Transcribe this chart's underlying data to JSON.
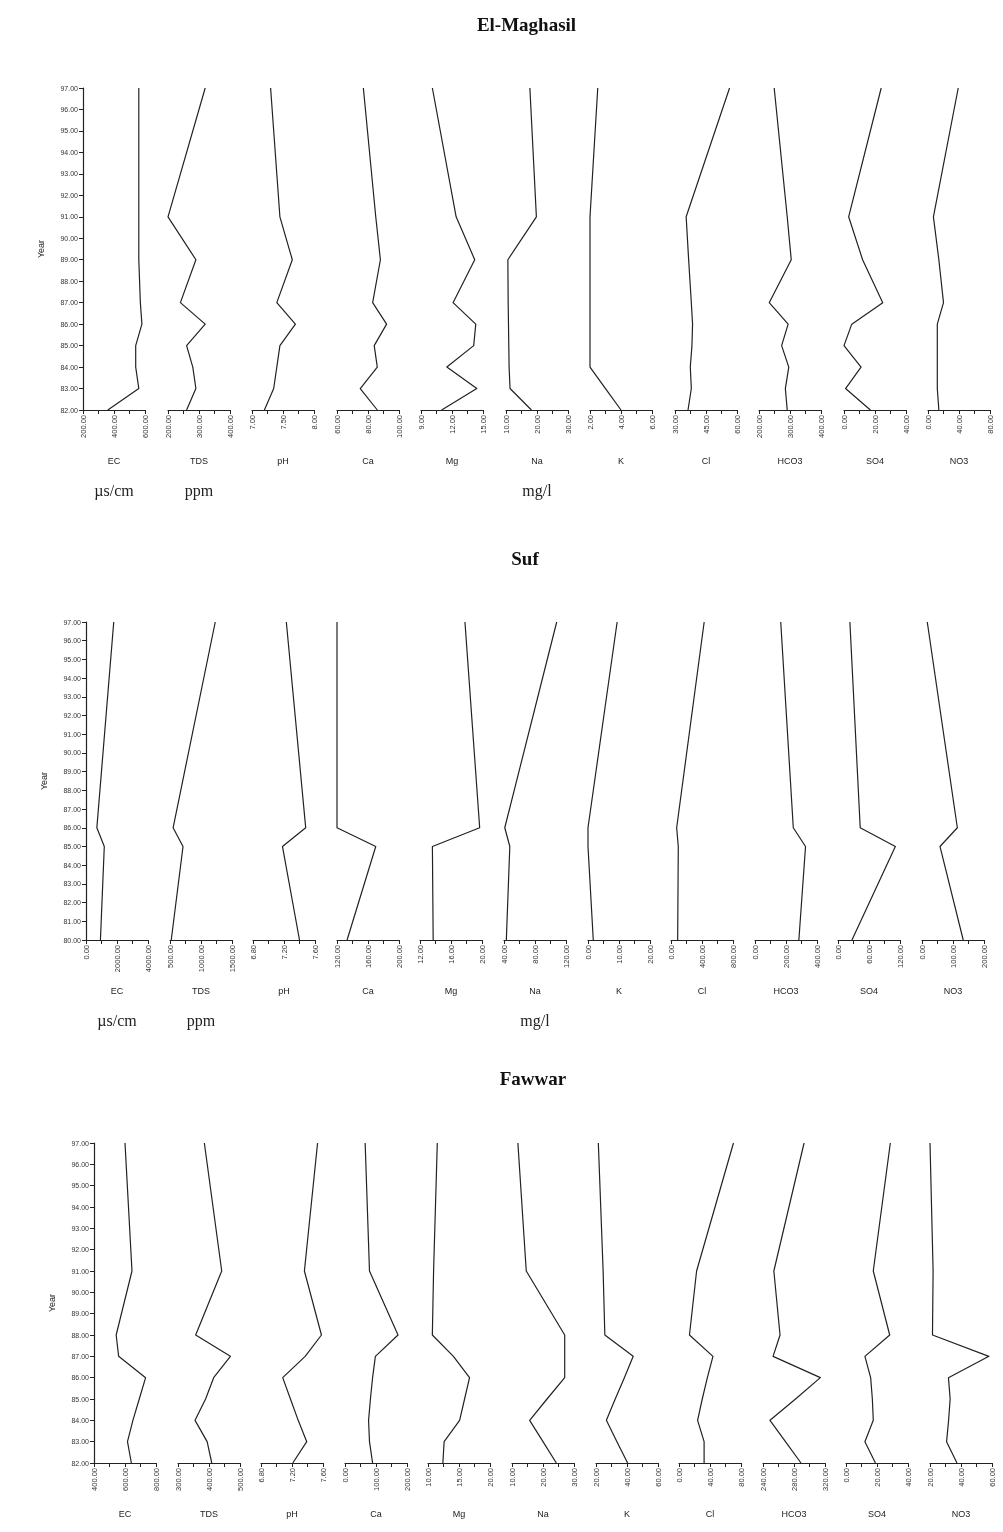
{
  "chart_data": [
    {
      "type": "line",
      "xlabel": "EC",
      "ylabel": "Year",
      "annotations": [
        "µs/cm"
      ],
      "color": "#222222",
      "x": [
        360,
        560,
        540,
        540,
        580,
        570,
        560,
        560,
        560
      ],
      "values": [
        82,
        83,
        84,
        85,
        86,
        87,
        89,
        91,
        97
      ],
      "xlim": [
        200,
        600
      ],
      "xticks": [
        {
          "value": 200,
          "label": "200.00"
        },
        {
          "value": 300,
          "label": null
        },
        {
          "value": 400,
          "label": "400.00"
        },
        {
          "value": 500,
          "label": null
        },
        {
          "value": 600,
          "label": "600.00"
        }
      ],
      "ylim": [
        82,
        97
      ],
      "yticks": [
        {
          "value": 82,
          "label": "82.00"
        },
        {
          "value": 83,
          "label": "83.00"
        },
        {
          "value": 84,
          "label": "84.00"
        },
        {
          "value": 85,
          "label": "85.00"
        },
        {
          "value": 86,
          "label": "86.00"
        },
        {
          "value": 87,
          "label": "87.00"
        },
        {
          "value": 88,
          "label": "88.00"
        },
        {
          "value": 89,
          "label": "89.00"
        },
        {
          "value": 90,
          "label": "90.00"
        },
        {
          "value": 91,
          "label": "91.00"
        },
        {
          "value": 92,
          "label": "92.00"
        },
        {
          "value": 93,
          "label": "93.00"
        },
        {
          "value": 94,
          "label": "94.00"
        },
        {
          "value": 95,
          "label": "95.00"
        },
        {
          "value": 96,
          "label": "96.00"
        },
        {
          "value": 97,
          "label": "97.00"
        }
      ]
    },
    {
      "type": "line",
      "xlabel": "TDS",
      "annotations": [
        "ppm"
      ],
      "color": "#222222",
      "x": [
        260,
        290,
        280,
        260,
        320,
        240,
        290,
        200,
        320
      ],
      "values": [
        82,
        83,
        84,
        85,
        86,
        87,
        89,
        91,
        97
      ],
      "xlim": [
        200,
        400
      ],
      "xticks": [
        {
          "value": 200,
          "label": "200.00"
        },
        {
          "value": 250,
          "label": null
        },
        {
          "value": 300,
          "label": "300.00"
        },
        {
          "value": 350,
          "label": null
        },
        {
          "value": 400,
          "label": "400.00"
        }
      ],
      "ylim": [
        82,
        97
      ],
      "tick_labels": "x"
    },
    {
      "type": "line",
      "xlabel": "pH",
      "color": "#222222",
      "x": [
        7.2,
        7.35,
        7.4,
        7.45,
        7.7,
        7.4,
        7.65,
        7.45,
        7.3
      ],
      "values": [
        82,
        83,
        84,
        85,
        86,
        87,
        89,
        91,
        97
      ],
      "xlim": [
        7,
        8
      ],
      "xticks": [
        {
          "value": 7,
          "label": "7.00"
        },
        {
          "value": 7.25,
          "label": null
        },
        {
          "value": 7.5,
          "label": "7.50"
        },
        {
          "value": 7.75,
          "label": null
        },
        {
          "value": 8,
          "label": "8.00"
        }
      ],
      "ylim": [
        82,
        97
      ],
      "tick_labels": "x"
    },
    {
      "type": "line",
      "xlabel": "Ca",
      "color": "#222222",
      "x": [
        86,
        75,
        86,
        84,
        92,
        83,
        88,
        85,
        77
      ],
      "values": [
        82,
        83,
        84,
        85,
        86,
        87,
        89,
        91,
        97
      ],
      "xlim": [
        60,
        100
      ],
      "xticks": [
        {
          "value": 60,
          "label": "60.00"
        },
        {
          "value": 70,
          "label": null
        },
        {
          "value": 80,
          "label": "80.00"
        },
        {
          "value": 90,
          "label": null
        },
        {
          "value": 100,
          "label": "100.00"
        }
      ],
      "ylim": [
        82,
        97
      ],
      "tick_labels": "x"
    },
    {
      "type": "line",
      "xlabel": "Mg",
      "color": "#222222",
      "x": [
        11,
        14.4,
        11.5,
        14.1,
        14.3,
        12.1,
        14.2,
        12.4,
        10.1
      ],
      "values": [
        82,
        83,
        84,
        85,
        86,
        87,
        89,
        91,
        97
      ],
      "xlim": [
        9,
        15
      ],
      "xticks": [
        {
          "value": 9,
          "label": "9.00"
        },
        {
          "value": 10.5,
          "label": null
        },
        {
          "value": 12,
          "label": "12.00"
        },
        {
          "value": 13.5,
          "label": null
        },
        {
          "value": 15,
          "label": "15.00"
        }
      ],
      "ylim": [
        82,
        97
      ],
      "tick_labels": "x"
    },
    {
      "type": "line",
      "title": "El-Maghasil",
      "xlabel": "Na",
      "annotations": [
        "mg/l"
      ],
      "color": "#222222",
      "x": [
        18.2,
        11.3,
        11,
        10.9,
        10.8,
        10.7,
        10.6,
        19.8,
        17.7
      ],
      "values": [
        82,
        83,
        84,
        85,
        86,
        87,
        89,
        91,
        97
      ],
      "xlim": [
        10,
        30
      ],
      "xticks": [
        {
          "value": 10,
          "label": "10.00"
        },
        {
          "value": 15,
          "label": null
        },
        {
          "value": 20,
          "label": "20.00"
        },
        {
          "value": 25,
          "label": null
        },
        {
          "value": 30,
          "label": "30.00"
        }
      ],
      "ylim": [
        82,
        97
      ],
      "tick_labels": "x"
    },
    {
      "type": "line",
      "xlabel": "K",
      "color": "#222222",
      "x": [
        4,
        3,
        2,
        2,
        2,
        2,
        2,
        2,
        2.5
      ],
      "values": [
        82,
        83,
        84,
        85,
        86,
        87,
        89,
        91,
        97
      ],
      "xlim": [
        2,
        6
      ],
      "xticks": [
        {
          "value": 2,
          "label": "2.00"
        },
        {
          "value": 3,
          "label": null
        },
        {
          "value": 4,
          "label": "4.00"
        },
        {
          "value": 5,
          "label": null
        },
        {
          "value": 6,
          "label": "6.00"
        }
      ],
      "ylim": [
        82,
        97
      ],
      "tick_labels": "x"
    },
    {
      "type": "line",
      "xlabel": "Cl",
      "color": "#222222",
      "x": [
        36.3,
        37.9,
        37.4,
        38.2,
        38.5,
        37.9,
        36.6,
        35.4,
        56.4
      ],
      "values": [
        82,
        83,
        84,
        85,
        86,
        87,
        89,
        91,
        97
      ],
      "xlim": [
        30,
        60
      ],
      "xticks": [
        {
          "value": 30,
          "label": "30.00"
        },
        {
          "value": 37.5,
          "label": null
        },
        {
          "value": 45,
          "label": "45.00"
        },
        {
          "value": 52.5,
          "label": null
        },
        {
          "value": 60,
          "label": "60.00"
        }
      ],
      "ylim": [
        82,
        97
      ],
      "tick_labels": "x"
    },
    {
      "type": "line",
      "xlabel": "HCO3",
      "color": "#222222",
      "x": [
        291,
        285,
        296,
        273,
        294,
        233,
        304,
        291,
        249
      ],
      "values": [
        82,
        83,
        84,
        85,
        86,
        87,
        89,
        91,
        97
      ],
      "xlim": [
        200,
        400
      ],
      "xticks": [
        {
          "value": 200,
          "label": "200.00"
        },
        {
          "value": 250,
          "label": null
        },
        {
          "value": 300,
          "label": "300.00"
        },
        {
          "value": 350,
          "label": null
        },
        {
          "value": 400,
          "label": "400.00"
        }
      ],
      "ylim": [
        82,
        97
      ],
      "tick_labels": "x"
    },
    {
      "type": "line",
      "xlabel": "SO4",
      "color": "#222222",
      "x": [
        17,
        1,
        11,
        0,
        5,
        25,
        12,
        3,
        24
      ],
      "values": [
        82,
        83,
        84,
        85,
        86,
        87,
        89,
        91,
        97
      ],
      "xlim": [
        0,
        40
      ],
      "xticks": [
        {
          "value": 0,
          "label": "0.00"
        },
        {
          "value": 10,
          "label": null
        },
        {
          "value": 20,
          "label": "20.00"
        },
        {
          "value": 30,
          "label": null
        },
        {
          "value": 40,
          "label": "40.00"
        }
      ],
      "ylim": [
        82,
        97
      ],
      "tick_labels": "x"
    },
    {
      "type": "line",
      "xlabel": "NO3",
      "color": "#222222",
      "x": [
        14,
        12,
        12,
        12,
        12,
        20,
        14,
        7,
        39
      ],
      "values": [
        82,
        83,
        84,
        85,
        86,
        87,
        89,
        91,
        97
      ],
      "xlim": [
        0,
        80
      ],
      "xticks": [
        {
          "value": 0,
          "label": "0.00"
        },
        {
          "value": 20,
          "label": null
        },
        {
          "value": 40,
          "label": "40.00"
        },
        {
          "value": 60,
          "label": null
        },
        {
          "value": 80,
          "label": "80.00"
        }
      ],
      "ylim": [
        82,
        97
      ],
      "tick_labels": "x"
    },
    {
      "type": "line",
      "xlabel": "EC",
      "ylabel": "Year",
      "annotations": [
        "µs/cm"
      ],
      "color": "#222222",
      "x": [
        930,
        1180,
        700,
        1790
      ],
      "values": [
        80,
        85,
        86,
        97
      ],
      "xlim": [
        0,
        4000
      ],
      "xticks": [
        {
          "value": 0,
          "label": "0.00"
        },
        {
          "value": 1000,
          "label": null
        },
        {
          "value": 2000,
          "label": "2000.00"
        },
        {
          "value": 3000,
          "label": null
        },
        {
          "value": 4000,
          "label": "4000.00"
        }
      ],
      "ylim": [
        80,
        97
      ],
      "yticks": [
        {
          "value": 80,
          "label": "80.00"
        },
        {
          "value": 81,
          "label": "81.00"
        },
        {
          "value": 82,
          "label": "82.00"
        },
        {
          "value": 83,
          "label": "83.00"
        },
        {
          "value": 84,
          "label": "84.00"
        },
        {
          "value": 85,
          "label": "85.00"
        },
        {
          "value": 86,
          "label": "86.00"
        },
        {
          "value": 87,
          "label": "87.00"
        },
        {
          "value": 88,
          "label": "88.00"
        },
        {
          "value": 89,
          "label": "89.00"
        },
        {
          "value": 90,
          "label": "90.00"
        },
        {
          "value": 91,
          "label": "91.00"
        },
        {
          "value": 92,
          "label": "92.00"
        },
        {
          "value": 93,
          "label": "93.00"
        },
        {
          "value": 94,
          "label": "94.00"
        },
        {
          "value": 95,
          "label": "95.00"
        },
        {
          "value": 96,
          "label": "96.00"
        },
        {
          "value": 97,
          "label": "97.00"
        }
      ]
    },
    {
      "type": "line",
      "xlabel": "TDS",
      "annotations": [
        "ppm"
      ],
      "color": "#222222",
      "x": [
        520,
        710,
        550,
        1230
      ],
      "values": [
        80,
        85,
        86,
        97
      ],
      "xlim": [
        500,
        1500
      ],
      "xticks": [
        {
          "value": 500,
          "label": "500.00"
        },
        {
          "value": 750,
          "label": null
        },
        {
          "value": 1000,
          "label": "1000.00"
        },
        {
          "value": 1250,
          "label": null
        },
        {
          "value": 1500,
          "label": "1500.00"
        }
      ],
      "ylim": [
        80,
        97
      ],
      "tick_labels": "x"
    },
    {
      "type": "line",
      "xlabel": "pH",
      "color": "#222222",
      "x": [
        7.4,
        7.18,
        7.48,
        7.23
      ],
      "values": [
        80,
        85,
        86,
        97
      ],
      "xlim": [
        6.8,
        7.6
      ],
      "xticks": [
        {
          "value": 6.8,
          "label": "6.80"
        },
        {
          "value": 7,
          "label": null
        },
        {
          "value": 7.2,
          "label": "7.20"
        },
        {
          "value": 7.4,
          "label": null
        },
        {
          "value": 7.6,
          "label": "7.60"
        }
      ],
      "ylim": [
        80,
        97
      ],
      "tick_labels": "x"
    },
    {
      "type": "line",
      "xlabel": "Ca",
      "color": "#222222",
      "x": [
        133,
        170,
        120,
        120
      ],
      "values": [
        80,
        85,
        86,
        97
      ],
      "xlim": [
        120,
        200
      ],
      "xticks": [
        {
          "value": 120,
          "label": "120.00"
        },
        {
          "value": 140,
          "label": null
        },
        {
          "value": 160,
          "label": "160.00"
        },
        {
          "value": 180,
          "label": null
        },
        {
          "value": 200,
          "label": "200.00"
        }
      ],
      "ylim": [
        80,
        97
      ],
      "tick_labels": "x"
    },
    {
      "type": "line",
      "xlabel": "Mg",
      "color": "#222222",
      "x": [
        13.7,
        13.6,
        19.7,
        17.8
      ],
      "values": [
        80,
        85,
        86,
        97
      ],
      "xlim": [
        12,
        20
      ],
      "xticks": [
        {
          "value": 12,
          "label": "12.00"
        },
        {
          "value": 14,
          "label": null
        },
        {
          "value": 16,
          "label": "16.00"
        },
        {
          "value": 18,
          "label": null
        },
        {
          "value": 20,
          "label": "20.00"
        }
      ],
      "ylim": [
        80,
        97
      ],
      "tick_labels": "x"
    },
    {
      "type": "line",
      "title": "Suf",
      "xlabel": "Na",
      "annotations": [
        "mg/l"
      ],
      "color": "#222222",
      "x": [
        43,
        47.5,
        41,
        108
      ],
      "values": [
        80,
        85,
        86,
        97
      ],
      "xlim": [
        40,
        120
      ],
      "xticks": [
        {
          "value": 40,
          "label": "40.00"
        },
        {
          "value": 60,
          "label": null
        },
        {
          "value": 80,
          "label": "80.00"
        },
        {
          "value": 100,
          "label": null
        },
        {
          "value": 120,
          "label": "120.00"
        }
      ],
      "ylim": [
        80,
        97
      ],
      "tick_labels": "x"
    },
    {
      "type": "line",
      "xlabel": "K",
      "color": "#222222",
      "x": [
        1.7,
        0,
        0,
        9.4
      ],
      "values": [
        80,
        85,
        86,
        97
      ],
      "xlim": [
        0,
        20
      ],
      "xticks": [
        {
          "value": 0,
          "label": "0.00"
        },
        {
          "value": 5,
          "label": null
        },
        {
          "value": 10,
          "label": "10.00"
        },
        {
          "value": 15,
          "label": null
        },
        {
          "value": 20,
          "label": "20.00"
        }
      ],
      "ylim": [
        80,
        97
      ],
      "tick_labels": "x"
    },
    {
      "type": "line",
      "xlabel": "Cl",
      "color": "#222222",
      "x": [
        86,
        94,
        73,
        428
      ],
      "values": [
        80,
        85,
        86,
        97
      ],
      "xlim": [
        0,
        800
      ],
      "xticks": [
        {
          "value": 0,
          "label": "0.00"
        },
        {
          "value": 200,
          "label": null
        },
        {
          "value": 400,
          "label": "400.00"
        },
        {
          "value": 600,
          "label": null
        },
        {
          "value": 800,
          "label": "800.00"
        }
      ],
      "ylim": [
        80,
        97
      ],
      "tick_labels": "x"
    },
    {
      "type": "line",
      "xlabel": "HCO3",
      "color": "#222222",
      "x": [
        283,
        326,
        247,
        166
      ],
      "values": [
        80,
        85,
        86,
        97
      ],
      "xlim": [
        0,
        400
      ],
      "xticks": [
        {
          "value": 0,
          "label": "0.00"
        },
        {
          "value": 100,
          "label": null
        },
        {
          "value": 200,
          "label": "200.00"
        },
        {
          "value": 300,
          "label": null
        },
        {
          "value": 400,
          "label": "400.00"
        }
      ],
      "ylim": [
        80,
        97
      ],
      "tick_labels": "x"
    },
    {
      "type": "line",
      "xlabel": "SO4",
      "color": "#222222",
      "x": [
        27,
        111,
        43,
        23
      ],
      "values": [
        80,
        85,
        86,
        97
      ],
      "xlim": [
        0,
        120
      ],
      "xticks": [
        {
          "value": 0,
          "label": "0.00"
        },
        {
          "value": 30,
          "label": null
        },
        {
          "value": 60,
          "label": "60.00"
        },
        {
          "value": 90,
          "label": null
        },
        {
          "value": 120,
          "label": "120.00"
        }
      ],
      "ylim": [
        80,
        97
      ],
      "tick_labels": "x"
    },
    {
      "type": "line",
      "xlabel": "NO3",
      "color": "#222222",
      "x": [
        133,
        58,
        114,
        17
      ],
      "values": [
        80,
        85,
        86,
        97
      ],
      "xlim": [
        0,
        200
      ],
      "xticks": [
        {
          "value": 0,
          "label": "0.00"
        },
        {
          "value": 50,
          "label": null
        },
        {
          "value": 100,
          "label": "100.00"
        },
        {
          "value": 150,
          "label": null
        },
        {
          "value": 200,
          "label": "200.00"
        }
      ],
      "ylim": [
        80,
        97
      ],
      "tick_labels": "x"
    },
    {
      "type": "line",
      "xlabel": "EC",
      "ylabel": "Year",
      "color": "#222222",
      "x": [
        641,
        616,
        651,
        692,
        733,
        559,
        543,
        645,
        600
      ],
      "values": [
        82,
        83,
        84,
        85,
        86,
        87,
        88,
        91,
        97
      ],
      "xlim": [
        400,
        800
      ],
      "xticks": [
        {
          "value": 400,
          "label": "400.00"
        },
        {
          "value": 500,
          "label": null
        },
        {
          "value": 600,
          "label": "600.00"
        },
        {
          "value": 700,
          "label": null
        },
        {
          "value": 800,
          "label": "800.00"
        }
      ],
      "ylim": [
        82,
        97
      ],
      "yticks": [
        {
          "value": 82,
          "label": "82.00"
        },
        {
          "value": 83,
          "label": "83.00"
        },
        {
          "value": 84,
          "label": "84.00"
        },
        {
          "value": 85,
          "label": "85.00"
        },
        {
          "value": 86,
          "label": "86.00"
        },
        {
          "value": 87,
          "label": "87.00"
        },
        {
          "value": 88,
          "label": "88.00"
        },
        {
          "value": 89,
          "label": "89.00"
        },
        {
          "value": 90,
          "label": "90.00"
        },
        {
          "value": 91,
          "label": "91.00"
        },
        {
          "value": 92,
          "label": "92.00"
        },
        {
          "value": 93,
          "label": "93.00"
        },
        {
          "value": 94,
          "label": "94.00"
        },
        {
          "value": 95,
          "label": "95.00"
        },
        {
          "value": 96,
          "label": "96.00"
        },
        {
          "value": 97,
          "label": "97.00"
        }
      ]
    },
    {
      "type": "line",
      "xlabel": "TDS",
      "color": "#222222",
      "x": [
        409,
        394,
        355,
        389,
        415,
        469,
        357,
        441,
        385
      ],
      "values": [
        82,
        83,
        84,
        85,
        86,
        87,
        88,
        91,
        97
      ],
      "xlim": [
        300,
        500
      ],
      "xticks": [
        {
          "value": 300,
          "label": "300.00"
        },
        {
          "value": 350,
          "label": null
        },
        {
          "value": 400,
          "label": "400.00"
        },
        {
          "value": 450,
          "label": null
        },
        {
          "value": 500,
          "label": "500.00"
        }
      ],
      "ylim": [
        82,
        97
      ],
      "tick_labels": "x"
    },
    {
      "type": "line",
      "xlabel": "pH",
      "color": "#222222",
      "x": [
        7.21,
        7.39,
        7.28,
        7.18,
        7.08,
        7.37,
        7.58,
        7.36,
        7.53
      ],
      "values": [
        82,
        83,
        84,
        85,
        86,
        87,
        88,
        91,
        97
      ],
      "xlim": [
        6.8,
        7.6
      ],
      "xticks": [
        {
          "value": 6.8,
          "label": "6.80"
        },
        {
          "value": 7,
          "label": null
        },
        {
          "value": 7.2,
          "label": "7.20"
        },
        {
          "value": 7.4,
          "label": null
        },
        {
          "value": 7.6,
          "label": "7.60"
        }
      ],
      "ylim": [
        82,
        97
      ],
      "tick_labels": "x"
    },
    {
      "type": "line",
      "xlabel": "Ca",
      "color": "#222222",
      "x": [
        89,
        79,
        76,
        82,
        89,
        98,
        171,
        79,
        65
      ],
      "values": [
        82,
        83,
        84,
        85,
        86,
        87,
        88,
        91,
        97
      ],
      "xlim": [
        0,
        200
      ],
      "xticks": [
        {
          "value": 0,
          "label": "0.00"
        },
        {
          "value": 50,
          "label": null
        },
        {
          "value": 100,
          "label": "100.00"
        },
        {
          "value": 150,
          "label": null
        },
        {
          "value": 200,
          "label": "200.00"
        }
      ],
      "ylim": [
        82,
        97
      ],
      "tick_labels": "x"
    },
    {
      "type": "line",
      "xlabel": "Mg",
      "color": "#222222",
      "x": [
        12.4,
        12.6,
        15.1,
        15.9,
        16.7,
        14.1,
        10.7,
        10.9,
        11.5
      ],
      "values": [
        82,
        83,
        84,
        85,
        86,
        87,
        88,
        91,
        97
      ],
      "xlim": [
        10,
        20
      ],
      "xticks": [
        {
          "value": 10,
          "label": "10.00"
        },
        {
          "value": 12.5,
          "label": null
        },
        {
          "value": 15,
          "label": "15.00"
        },
        {
          "value": 17.5,
          "label": null
        },
        {
          "value": 20,
          "label": "20.00"
        }
      ],
      "ylim": [
        82,
        97
      ],
      "tick_labels": "x"
    },
    {
      "type": "line",
      "title": "Fawwar",
      "xlabel": "Na",
      "color": "#222222",
      "x": [
        24.3,
        20,
        15.7,
        21.3,
        27,
        27,
        27,
        14.6,
        11.9
      ],
      "values": [
        82,
        83,
        84,
        85,
        86,
        87,
        88,
        91,
        97
      ],
      "xlim": [
        10,
        30
      ],
      "xticks": [
        {
          "value": 10,
          "label": "10.00"
        },
        {
          "value": 15,
          "label": null
        },
        {
          "value": 20,
          "label": "20.00"
        },
        {
          "value": 25,
          "label": null
        },
        {
          "value": 30,
          "label": "30.00"
        }
      ],
      "ylim": [
        82,
        97
      ],
      "tick_labels": "x"
    },
    {
      "type": "line",
      "xlabel": "K",
      "color": "#222222",
      "x": [
        40.4,
        33.5,
        26.7,
        32.4,
        38.3,
        44,
        25.7,
        24.6,
        21.5
      ],
      "values": [
        82,
        83,
        84,
        85,
        86,
        87,
        88,
        91,
        97
      ],
      "xlim": [
        20,
        60
      ],
      "xticks": [
        {
          "value": 20,
          "label": "20.00"
        },
        {
          "value": 30,
          "label": null
        },
        {
          "value": 40,
          "label": "40.00"
        },
        {
          "value": 50,
          "label": null
        },
        {
          "value": 60,
          "label": "60.00"
        }
      ],
      "ylim": [
        82,
        97
      ],
      "tick_labels": "x"
    },
    {
      "type": "line",
      "xlabel": "Cl",
      "color": "#222222",
      "x": [
        32.4,
        32.4,
        24,
        30,
        36.6,
        43.8,
        13.5,
        22.7,
        70.3
      ],
      "values": [
        82,
        83,
        84,
        85,
        86,
        87,
        88,
        91,
        97
      ],
      "xlim": [
        0,
        80
      ],
      "xticks": [
        {
          "value": 0,
          "label": "0.00"
        },
        {
          "value": 20,
          "label": null
        },
        {
          "value": 40,
          "label": "40.00"
        },
        {
          "value": 60,
          "label": null
        },
        {
          "value": 80,
          "label": "80.00"
        }
      ],
      "ylim": [
        82,
        97
      ],
      "tick_labels": "x"
    },
    {
      "type": "line",
      "xlabel": "HCO3",
      "color": "#222222",
      "x": [
        289,
        269,
        249,
        282,
        314,
        253,
        262,
        254,
        293
      ],
      "values": [
        82,
        83,
        84,
        85,
        86,
        87,
        88,
        91,
        97
      ],
      "xlim": [
        240,
        320
      ],
      "xticks": [
        {
          "value": 240,
          "label": "240.00"
        },
        {
          "value": 260,
          "label": null
        },
        {
          "value": 280,
          "label": "280.00"
        },
        {
          "value": 300,
          "label": null
        },
        {
          "value": 320,
          "label": "320.00"
        }
      ],
      "ylim": [
        82,
        97
      ],
      "tick_labels": "x"
    },
    {
      "type": "line",
      "xlabel": "SO4",
      "color": "#222222",
      "x": [
        19,
        12.2,
        17.6,
        17,
        15.9,
        12.2,
        28.2,
        17.6,
        28.6
      ],
      "values": [
        82,
        83,
        84,
        85,
        86,
        87,
        88,
        91,
        97
      ],
      "xlim": [
        0,
        40
      ],
      "xticks": [
        {
          "value": 0,
          "label": "0.00"
        },
        {
          "value": 10,
          "label": null
        },
        {
          "value": 20,
          "label": "20.00"
        },
        {
          "value": 30,
          "label": null
        },
        {
          "value": 40,
          "label": "40.00"
        }
      ],
      "ylim": [
        82,
        97
      ],
      "tick_labels": "x"
    },
    {
      "type": "line",
      "xlabel": "NO3",
      "color": "#222222",
      "x": [
        37.4,
        30.7,
        32,
        33,
        31.9,
        58,
        21.6,
        22,
        20
      ],
      "values": [
        82,
        83,
        84,
        85,
        86,
        87,
        88,
        91,
        97
      ],
      "xlim": [
        20,
        60
      ],
      "xticks": [
        {
          "value": 20,
          "label": "20.00"
        },
        {
          "value": 30,
          "label": null
        },
        {
          "value": 40,
          "label": "40.00"
        },
        {
          "value": 50,
          "label": null
        },
        {
          "value": 60,
          "label": "60.00"
        }
      ],
      "ylim": [
        82,
        97
      ],
      "tick_labels": "x"
    }
  ]
}
